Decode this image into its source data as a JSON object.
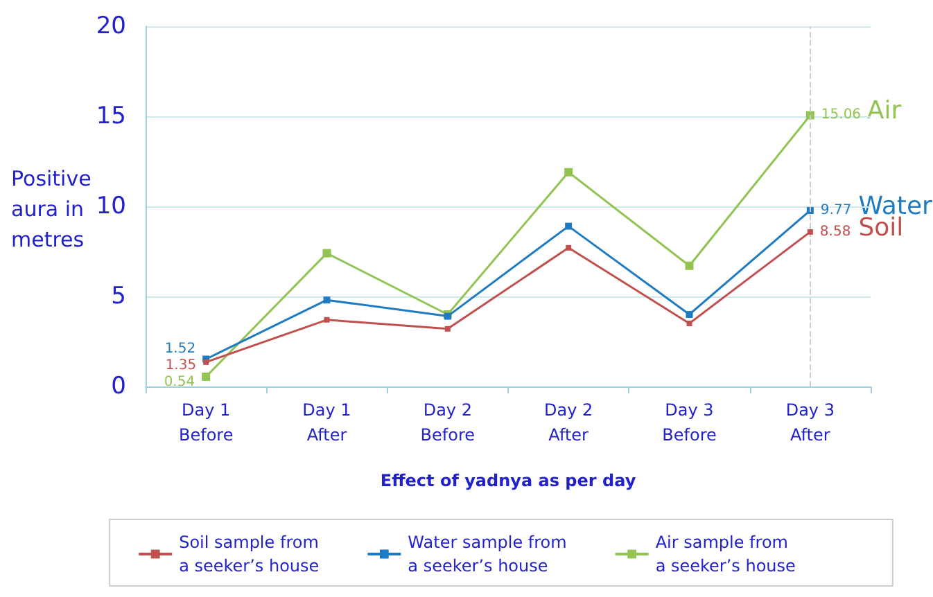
{
  "chart_data": {
    "type": "line",
    "xlabel": "Effect of yadnya as per day",
    "ylabel": "Positive\naura in\nmetres",
    "categories": [
      "Day 1\nBefore",
      "Day 1\nAfter",
      "Day 2\nBefore",
      "Day 2\nAfter",
      "Day 3\nBefore",
      "Day 3\nAfter"
    ],
    "series": [
      {
        "name": "Soil sample from\na seeker’s house",
        "color": "#c0504d",
        "values": [
          1.35,
          3.7,
          3.2,
          7.7,
          3.5,
          8.58
        ],
        "value_labels": [
          "1.35",
          null,
          null,
          null,
          null,
          "8.58"
        ]
      },
      {
        "name": "Water sample from\na seeker’s house",
        "color": "#1f7bc1",
        "values": [
          1.52,
          4.8,
          3.9,
          8.9,
          4.0,
          9.77
        ],
        "value_labels": [
          "1.52",
          null,
          null,
          null,
          null,
          "9.77"
        ]
      },
      {
        "name": "Air sample from\na seeker’s house",
        "color": "#92c353",
        "values": [
          0.54,
          7.4,
          4.0,
          11.9,
          6.7,
          15.06
        ],
        "value_labels": [
          "0.54",
          null,
          null,
          null,
          null,
          "15.06"
        ]
      }
    ],
    "annotations": [
      {
        "text": "Soil",
        "x": "Day 3\nAfter",
        "y": 8.58
      },
      {
        "text": "Water",
        "x": "Day 3\nAfter",
        "y": 9.77
      },
      {
        "text": "Air",
        "x": "Day 3\nAfter",
        "y": 15.06
      }
    ],
    "ref_lines": [
      {
        "axis": "x",
        "value": "Day 3\nAfter",
        "color": "#cccccc",
        "line_style": "dashed"
      }
    ],
    "ylim": [
      0,
      20
    ],
    "yticks": [
      0,
      5,
      10,
      15,
      20
    ],
    "grid": "y",
    "legend": "bottom",
    "marker": "square",
    "line_style": "solid"
  }
}
